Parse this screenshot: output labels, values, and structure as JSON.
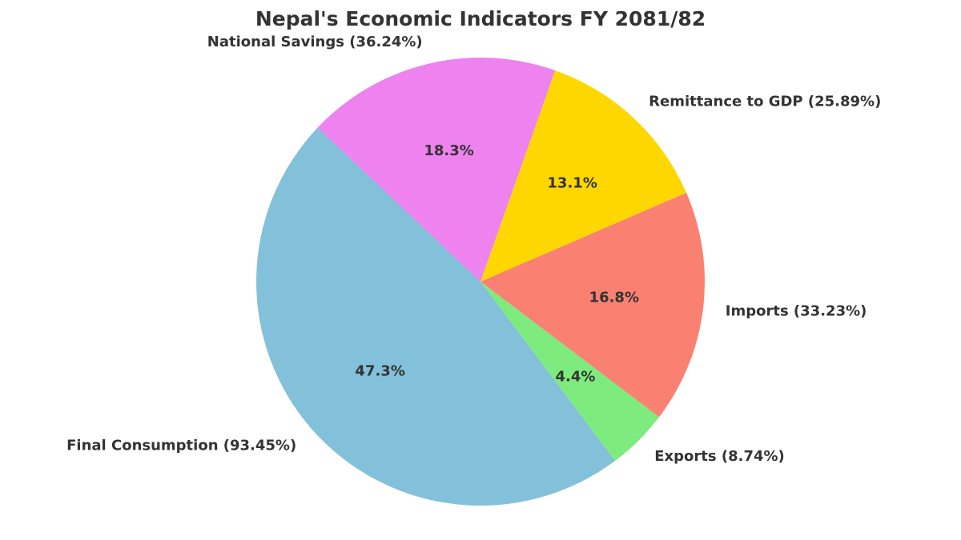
{
  "chart_data": {
    "type": "pie",
    "title": "Nepal's Economic Indicators FY 2081/82",
    "slices": [
      {
        "label": "Final Consumption (93.45%)",
        "value": 93.45,
        "pct_label": "47.3%",
        "color": "#82c1d9"
      },
      {
        "label": "Exports (8.74%)",
        "value": 8.74,
        "pct_label": "4.4%",
        "color": "#7deb7d"
      },
      {
        "label": "Imports (33.23%)",
        "value": 33.23,
        "pct_label": "16.8%",
        "color": "#fa8072"
      },
      {
        "label": "Remittance to GDP (25.89%)",
        "value": 25.89,
        "pct_label": "13.1%",
        "color": "#ffd700"
      },
      {
        "label": "National Savings (36.24%)",
        "value": 36.24,
        "pct_label": "18.3%",
        "color": "#ee82ee"
      }
    ]
  }
}
